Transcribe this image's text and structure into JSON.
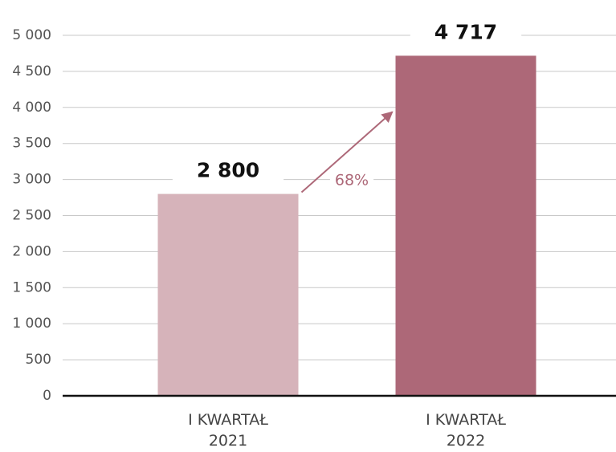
{
  "chart_data": {
    "type": "bar",
    "categories": [
      "I KWARTAŁ 2021",
      "I KWARTAŁ 2022"
    ],
    "values": [
      2800,
      4717
    ],
    "value_labels": [
      "2 800",
      "4 717"
    ],
    "colors": [
      "#d6b3ba",
      "#ad6878"
    ],
    "ylim": [
      0,
      5000
    ],
    "yticks": [
      0,
      500,
      {
        "value": 1000,
        "label": "1 000"
      },
      {
        "value": 1500,
        "label": "1 500"
      },
      {
        "value": 2000,
        "label": "2 000"
      },
      {
        "value": 2500,
        "label": "2 500"
      },
      {
        "value": 3000,
        "label": "3 000"
      },
      {
        "value": 3500,
        "label": "3 500"
      },
      {
        "value": 4000,
        "label": "4 000"
      },
      {
        "value": 4500,
        "label": "4 500"
      },
      {
        "value": 5000,
        "label": "5 000"
      }
    ],
    "grid": true,
    "annotation": {
      "text": "68%",
      "color": "#ad6878"
    }
  }
}
